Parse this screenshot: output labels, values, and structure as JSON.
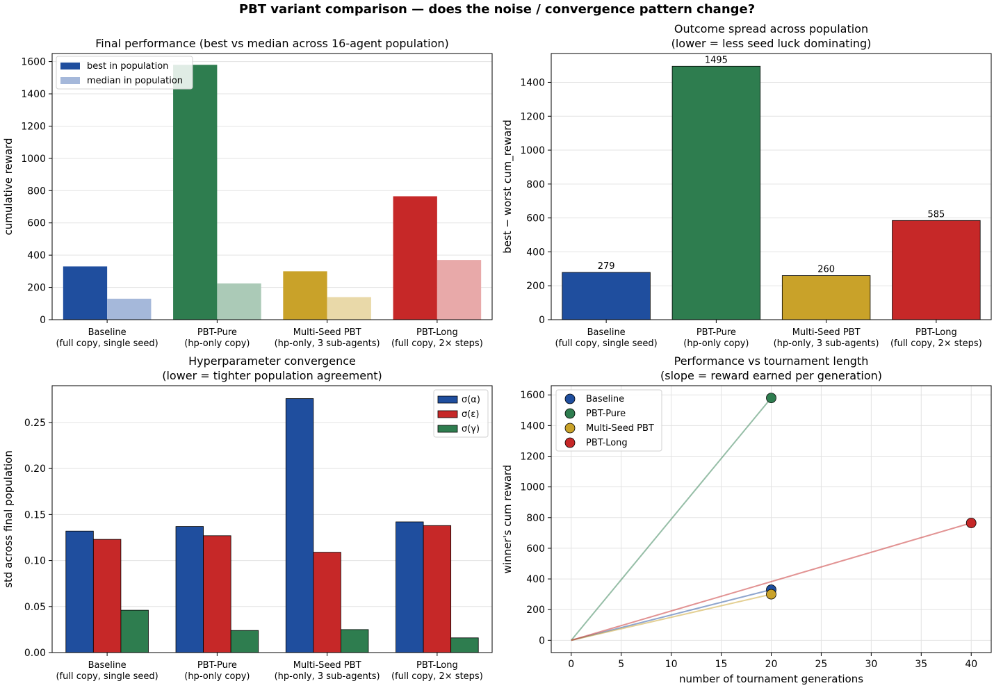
{
  "suptitle": "PBT variant comparison — does the noise / convergence pattern change?",
  "colors": {
    "baseline": "#1f4e9e",
    "pbt_pure": "#2e7d4f",
    "multi_seed": "#c9a229",
    "pbt_long": "#c62828",
    "baseline_light": "#a5b8da",
    "pbt_pure_light": "#abcab7",
    "multi_seed_light": "#e9d9a9",
    "pbt_long_light": "#e8a9a9"
  },
  "chart_data": [
    {
      "type": "bar",
      "title": "Final performance  (best vs median across 16-agent population)",
      "xlabel": "",
      "ylabel": "cumulative reward",
      "ylim": [
        0,
        1650
      ],
      "yticks": [
        "0",
        "200",
        "400",
        "600",
        "800",
        "1000",
        "1200",
        "1400",
        "1600"
      ],
      "grid": "y",
      "legend_position": "upper-left",
      "categories": [
        [
          "Baseline",
          "(full copy, single seed)"
        ],
        [
          "PBT-Pure",
          "(hp-only copy)"
        ],
        [
          "Multi-Seed PBT",
          "(hp-only, 3 sub-agents)"
        ],
        [
          "PBT-Long",
          "(full copy, 2× steps)"
        ]
      ],
      "series": [
        {
          "name": "best in population",
          "values": [
            330,
            1580,
            300,
            765
          ]
        },
        {
          "name": "median in population",
          "values": [
            130,
            225,
            140,
            370
          ]
        }
      ]
    },
    {
      "type": "bar",
      "title": "Outcome spread across population",
      "subtitle": "(lower = less seed luck dominating)",
      "xlabel": "",
      "ylabel": "best − worst cum_reward",
      "ylim": [
        0,
        1570
      ],
      "yticks": [
        "0",
        "200",
        "400",
        "600",
        "800",
        "1000",
        "1200",
        "1400"
      ],
      "grid": "y",
      "categories": [
        [
          "Baseline",
          "(full copy, single seed)"
        ],
        [
          "PBT-Pure",
          "(hp-only copy)"
        ],
        [
          "Multi-Seed PBT",
          "(hp-only, 3 sub-agents)"
        ],
        [
          "PBT-Long",
          "(full copy, 2× steps)"
        ]
      ],
      "values": [
        279,
        1495,
        260,
        585
      ],
      "data_labels": [
        "279",
        "1495",
        "260",
        "585"
      ]
    },
    {
      "type": "bar",
      "title": "Hyperparameter convergence",
      "subtitle": "(lower = tighter population agreement)",
      "xlabel": "",
      "ylabel": "std across final population",
      "ylim": [
        0,
        0.29
      ],
      "yticks": [
        "0.00",
        "0.05",
        "0.10",
        "0.15",
        "0.20",
        "0.25"
      ],
      "grid": "y",
      "legend_position": "upper-right",
      "categories": [
        [
          "Baseline",
          "(full copy, single seed)"
        ],
        [
          "PBT-Pure",
          "(hp-only copy)"
        ],
        [
          "Multi-Seed PBT",
          "(hp-only, 3 sub-agents)"
        ],
        [
          "PBT-Long",
          "(full copy, 2× steps)"
        ]
      ],
      "series": [
        {
          "name": "σ(α)",
          "values": [
            0.132,
            0.137,
            0.276,
            0.142
          ]
        },
        {
          "name": "σ(ε)",
          "values": [
            0.123,
            0.127,
            0.109,
            0.138
          ]
        },
        {
          "name": "σ(γ)",
          "values": [
            0.046,
            0.024,
            0.025,
            0.016
          ]
        }
      ]
    },
    {
      "type": "scatter",
      "title": "Performance vs tournament length",
      "subtitle": "(slope = reward earned per generation)",
      "xlabel": "number of tournament generations",
      "ylabel": "winner's cum reward",
      "xlim": [
        -2,
        42
      ],
      "ylim": [
        -80,
        1660
      ],
      "xticks": [
        "0",
        "5",
        "10",
        "15",
        "20",
        "25",
        "30",
        "35",
        "40"
      ],
      "yticks": [
        "0",
        "200",
        "400",
        "600",
        "800",
        "1000",
        "1200",
        "1400",
        "1600"
      ],
      "grid": "both",
      "legend_position": "upper-left",
      "series": [
        {
          "name": "Baseline",
          "x": 20,
          "y": 330
        },
        {
          "name": "PBT-Pure",
          "x": 20,
          "y": 1580
        },
        {
          "name": "Multi-Seed PBT",
          "x": 20,
          "y": 300
        },
        {
          "name": "PBT-Long",
          "x": 40,
          "y": 765
        }
      ]
    }
  ]
}
